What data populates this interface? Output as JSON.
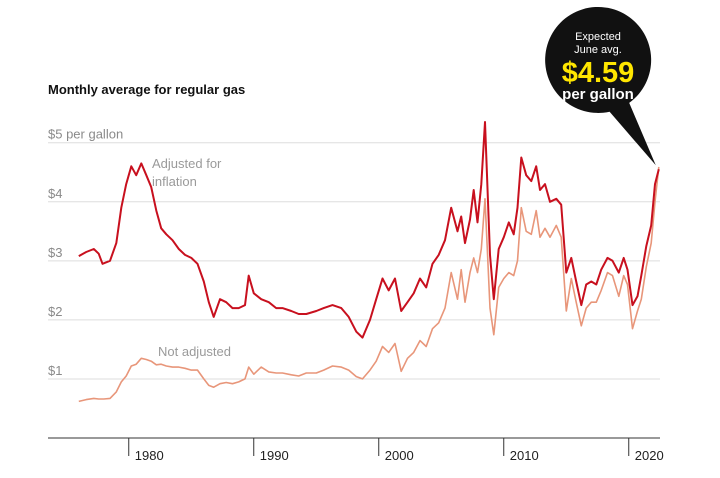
{
  "chart_data": {
    "type": "line",
    "title": "Monthly average for regular gas",
    "colors": {
      "adjusted": "#c8101e",
      "not_adjusted": "#e8967a",
      "callout_bg": "#111111",
      "callout_value": "#ffe600",
      "grid": "#dddddd"
    },
    "xlim": [
      1974.5,
      2022.5
    ],
    "ylim": [
      0,
      5.3
    ],
    "y_ticks": [
      {
        "value": 5,
        "label": "$5 per gallon"
      },
      {
        "value": 4,
        "label": "$4"
      },
      {
        "value": 3,
        "label": "$3"
      },
      {
        "value": 2,
        "label": "$2"
      },
      {
        "value": 1,
        "label": "$1"
      }
    ],
    "x_ticks": [
      {
        "value": 1980,
        "label": "1980"
      },
      {
        "value": 1990,
        "label": "1990"
      },
      {
        "value": 2000,
        "label": "2000"
      },
      {
        "value": 2010,
        "label": "2010"
      },
      {
        "value": 2020,
        "label": "2020"
      }
    ],
    "series": [
      {
        "name": "Adjusted for inflation",
        "label_lines": [
          "Adjusted for",
          "inflation"
        ],
        "points": [
          [
            1976.0,
            3.08
          ],
          [
            1976.6,
            3.15
          ],
          [
            1977.2,
            3.2
          ],
          [
            1977.6,
            3.12
          ],
          [
            1977.9,
            2.95
          ],
          [
            1978.5,
            3.0
          ],
          [
            1979.0,
            3.3
          ],
          [
            1979.4,
            3.9
          ],
          [
            1979.8,
            4.3
          ],
          [
            1980.2,
            4.6
          ],
          [
            1980.6,
            4.45
          ],
          [
            1981.0,
            4.65
          ],
          [
            1981.4,
            4.45
          ],
          [
            1981.8,
            4.25
          ],
          [
            1982.2,
            3.85
          ],
          [
            1982.6,
            3.55
          ],
          [
            1983.0,
            3.45
          ],
          [
            1983.5,
            3.35
          ],
          [
            1984.0,
            3.2
          ],
          [
            1984.5,
            3.1
          ],
          [
            1985.0,
            3.05
          ],
          [
            1985.5,
            2.95
          ],
          [
            1986.0,
            2.65
          ],
          [
            1986.4,
            2.3
          ],
          [
            1986.8,
            2.05
          ],
          [
            1987.3,
            2.35
          ],
          [
            1987.8,
            2.3
          ],
          [
            1988.3,
            2.2
          ],
          [
            1988.8,
            2.2
          ],
          [
            1989.3,
            2.25
          ],
          [
            1989.6,
            2.75
          ],
          [
            1990.0,
            2.45
          ],
          [
            1990.6,
            2.35
          ],
          [
            1991.2,
            2.3
          ],
          [
            1991.8,
            2.2
          ],
          [
            1992.3,
            2.2
          ],
          [
            1993.0,
            2.15
          ],
          [
            1993.6,
            2.1
          ],
          [
            1994.2,
            2.1
          ],
          [
            1995.0,
            2.15
          ],
          [
            1995.6,
            2.2
          ],
          [
            1996.3,
            2.25
          ],
          [
            1997.0,
            2.2
          ],
          [
            1997.6,
            2.05
          ],
          [
            1998.2,
            1.8
          ],
          [
            1998.7,
            1.7
          ],
          [
            1999.3,
            2.0
          ],
          [
            1999.8,
            2.35
          ],
          [
            2000.3,
            2.7
          ],
          [
            2000.8,
            2.5
          ],
          [
            2001.3,
            2.7
          ],
          [
            2001.8,
            2.15
          ],
          [
            2002.3,
            2.3
          ],
          [
            2002.8,
            2.45
          ],
          [
            2003.3,
            2.7
          ],
          [
            2003.8,
            2.55
          ],
          [
            2004.3,
            2.95
          ],
          [
            2004.8,
            3.1
          ],
          [
            2005.3,
            3.35
          ],
          [
            2005.8,
            3.9
          ],
          [
            2006.3,
            3.5
          ],
          [
            2006.6,
            3.75
          ],
          [
            2006.9,
            3.3
          ],
          [
            2007.3,
            3.7
          ],
          [
            2007.6,
            4.2
          ],
          [
            2007.9,
            3.65
          ],
          [
            2008.2,
            4.3
          ],
          [
            2008.5,
            5.35
          ],
          [
            2008.9,
            3.1
          ],
          [
            2009.2,
            2.35
          ],
          [
            2009.6,
            3.2
          ],
          [
            2010.0,
            3.4
          ],
          [
            2010.4,
            3.65
          ],
          [
            2010.8,
            3.45
          ],
          [
            2011.1,
            3.9
          ],
          [
            2011.4,
            4.75
          ],
          [
            2011.8,
            4.45
          ],
          [
            2012.2,
            4.35
          ],
          [
            2012.6,
            4.6
          ],
          [
            2012.9,
            4.2
          ],
          [
            2013.3,
            4.3
          ],
          [
            2013.7,
            4.0
          ],
          [
            2014.2,
            4.05
          ],
          [
            2014.6,
            3.95
          ],
          [
            2015.0,
            2.8
          ],
          [
            2015.4,
            3.05
          ],
          [
            2015.8,
            2.65
          ],
          [
            2016.2,
            2.25
          ],
          [
            2016.6,
            2.6
          ],
          [
            2017.0,
            2.65
          ],
          [
            2017.4,
            2.6
          ],
          [
            2017.8,
            2.85
          ],
          [
            2018.3,
            3.05
          ],
          [
            2018.7,
            3.0
          ],
          [
            2019.2,
            2.8
          ],
          [
            2019.6,
            3.05
          ],
          [
            2019.9,
            2.85
          ],
          [
            2020.3,
            2.25
          ],
          [
            2020.7,
            2.4
          ],
          [
            2021.0,
            2.75
          ],
          [
            2021.4,
            3.25
          ],
          [
            2021.8,
            3.6
          ],
          [
            2022.1,
            4.3
          ],
          [
            2022.4,
            4.55
          ]
        ]
      },
      {
        "name": "Not adjusted",
        "label_lines": [
          "Not adjusted"
        ],
        "points": [
          [
            1976.0,
            0.62
          ],
          [
            1976.6,
            0.65
          ],
          [
            1977.2,
            0.67
          ],
          [
            1977.6,
            0.66
          ],
          [
            1978.0,
            0.66
          ],
          [
            1978.5,
            0.67
          ],
          [
            1979.0,
            0.78
          ],
          [
            1979.4,
            0.95
          ],
          [
            1979.8,
            1.05
          ],
          [
            1980.2,
            1.22
          ],
          [
            1980.6,
            1.25
          ],
          [
            1981.0,
            1.35
          ],
          [
            1981.4,
            1.33
          ],
          [
            1981.8,
            1.3
          ],
          [
            1982.2,
            1.24
          ],
          [
            1982.6,
            1.25
          ],
          [
            1983.0,
            1.22
          ],
          [
            1983.5,
            1.2
          ],
          [
            1984.0,
            1.2
          ],
          [
            1984.5,
            1.18
          ],
          [
            1985.0,
            1.15
          ],
          [
            1985.5,
            1.15
          ],
          [
            1986.0,
            1.0
          ],
          [
            1986.4,
            0.89
          ],
          [
            1986.8,
            0.86
          ],
          [
            1987.3,
            0.92
          ],
          [
            1987.8,
            0.94
          ],
          [
            1988.3,
            0.92
          ],
          [
            1988.8,
            0.95
          ],
          [
            1989.3,
            1.0
          ],
          [
            1989.6,
            1.2
          ],
          [
            1990.0,
            1.08
          ],
          [
            1990.6,
            1.2
          ],
          [
            1991.2,
            1.12
          ],
          [
            1991.8,
            1.1
          ],
          [
            1992.3,
            1.1
          ],
          [
            1993.0,
            1.07
          ],
          [
            1993.6,
            1.05
          ],
          [
            1994.2,
            1.1
          ],
          [
            1995.0,
            1.1
          ],
          [
            1995.6,
            1.15
          ],
          [
            1996.3,
            1.22
          ],
          [
            1997.0,
            1.2
          ],
          [
            1997.6,
            1.15
          ],
          [
            1998.2,
            1.04
          ],
          [
            1998.7,
            1.0
          ],
          [
            1999.3,
            1.15
          ],
          [
            1999.8,
            1.3
          ],
          [
            2000.3,
            1.55
          ],
          [
            2000.8,
            1.45
          ],
          [
            2001.3,
            1.6
          ],
          [
            2001.8,
            1.13
          ],
          [
            2002.3,
            1.35
          ],
          [
            2002.8,
            1.45
          ],
          [
            2003.3,
            1.65
          ],
          [
            2003.8,
            1.55
          ],
          [
            2004.3,
            1.85
          ],
          [
            2004.8,
            1.95
          ],
          [
            2005.3,
            2.2
          ],
          [
            2005.8,
            2.8
          ],
          [
            2006.3,
            2.35
          ],
          [
            2006.6,
            2.85
          ],
          [
            2006.9,
            2.3
          ],
          [
            2007.3,
            2.8
          ],
          [
            2007.6,
            3.05
          ],
          [
            2007.9,
            2.8
          ],
          [
            2008.2,
            3.2
          ],
          [
            2008.5,
            4.05
          ],
          [
            2008.9,
            2.2
          ],
          [
            2009.2,
            1.75
          ],
          [
            2009.6,
            2.55
          ],
          [
            2010.0,
            2.7
          ],
          [
            2010.4,
            2.8
          ],
          [
            2010.8,
            2.75
          ],
          [
            2011.1,
            3.0
          ],
          [
            2011.4,
            3.9
          ],
          [
            2011.8,
            3.5
          ],
          [
            2012.2,
            3.45
          ],
          [
            2012.6,
            3.85
          ],
          [
            2012.9,
            3.4
          ],
          [
            2013.3,
            3.55
          ],
          [
            2013.7,
            3.4
          ],
          [
            2014.2,
            3.6
          ],
          [
            2014.6,
            3.4
          ],
          [
            2015.0,
            2.15
          ],
          [
            2015.4,
            2.7
          ],
          [
            2015.8,
            2.3
          ],
          [
            2016.2,
            1.9
          ],
          [
            2016.6,
            2.2
          ],
          [
            2017.0,
            2.3
          ],
          [
            2017.4,
            2.3
          ],
          [
            2017.8,
            2.5
          ],
          [
            2018.3,
            2.8
          ],
          [
            2018.7,
            2.75
          ],
          [
            2019.2,
            2.4
          ],
          [
            2019.6,
            2.75
          ],
          [
            2019.9,
            2.6
          ],
          [
            2020.3,
            1.85
          ],
          [
            2020.7,
            2.15
          ],
          [
            2021.0,
            2.35
          ],
          [
            2021.4,
            2.9
          ],
          [
            2021.8,
            3.3
          ],
          [
            2022.1,
            4.0
          ],
          [
            2022.4,
            4.59
          ]
        ]
      }
    ],
    "annotation": {
      "line1": "Expected",
      "line2": "June avg.",
      "value": "$4.59",
      "unit": "per gallon",
      "x": 2022.4,
      "y": 4.59
    }
  }
}
